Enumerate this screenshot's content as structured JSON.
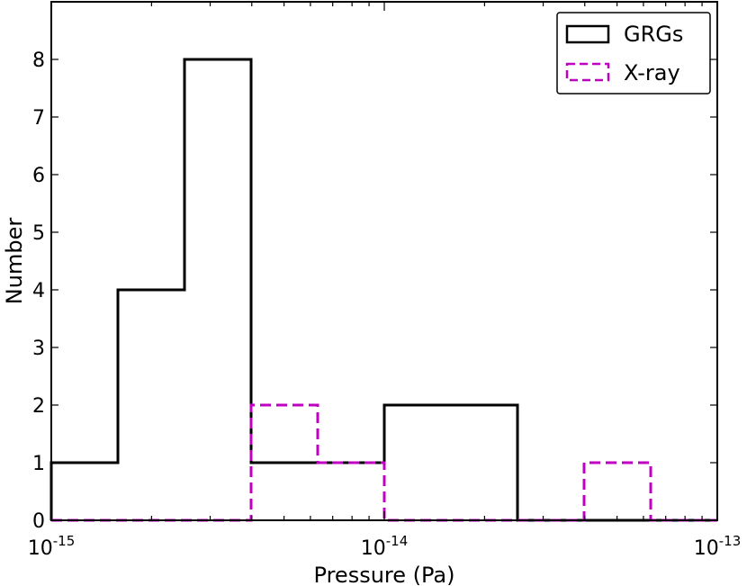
{
  "chart_data": {
    "type": "histogram",
    "xlabel": "Pressure (Pa)",
    "ylabel": "Number",
    "xscale": "log",
    "xlim": [
      1e-15,
      1e-13
    ],
    "ylim": [
      0,
      9
    ],
    "xticks": [
      {
        "base": "10",
        "exp": "-15"
      },
      {
        "base": "10",
        "exp": "-14"
      },
      {
        "base": "10",
        "exp": "-13"
      }
    ],
    "yticks": [
      0,
      1,
      2,
      3,
      4,
      5,
      6,
      7,
      8
    ],
    "legend_position": "top-right",
    "grid": false,
    "bin_edges": [
      1e-15,
      1.585e-15,
      2.512e-15,
      3.981e-15,
      6.31e-15,
      1e-14,
      1.585e-14,
      2.512e-14,
      3.981e-14,
      6.31e-14,
      1e-13
    ],
    "series": [
      {
        "name": "GRGs",
        "style": "solid",
        "color": "#000000",
        "counts": [
          1,
          4,
          8,
          1,
          1,
          2,
          2,
          0,
          0,
          0
        ]
      },
      {
        "name": "X-ray",
        "style": "dashed",
        "color": "#c000c0",
        "counts": [
          0,
          0,
          0,
          2,
          1,
          0,
          0,
          0,
          1,
          0
        ]
      }
    ]
  }
}
